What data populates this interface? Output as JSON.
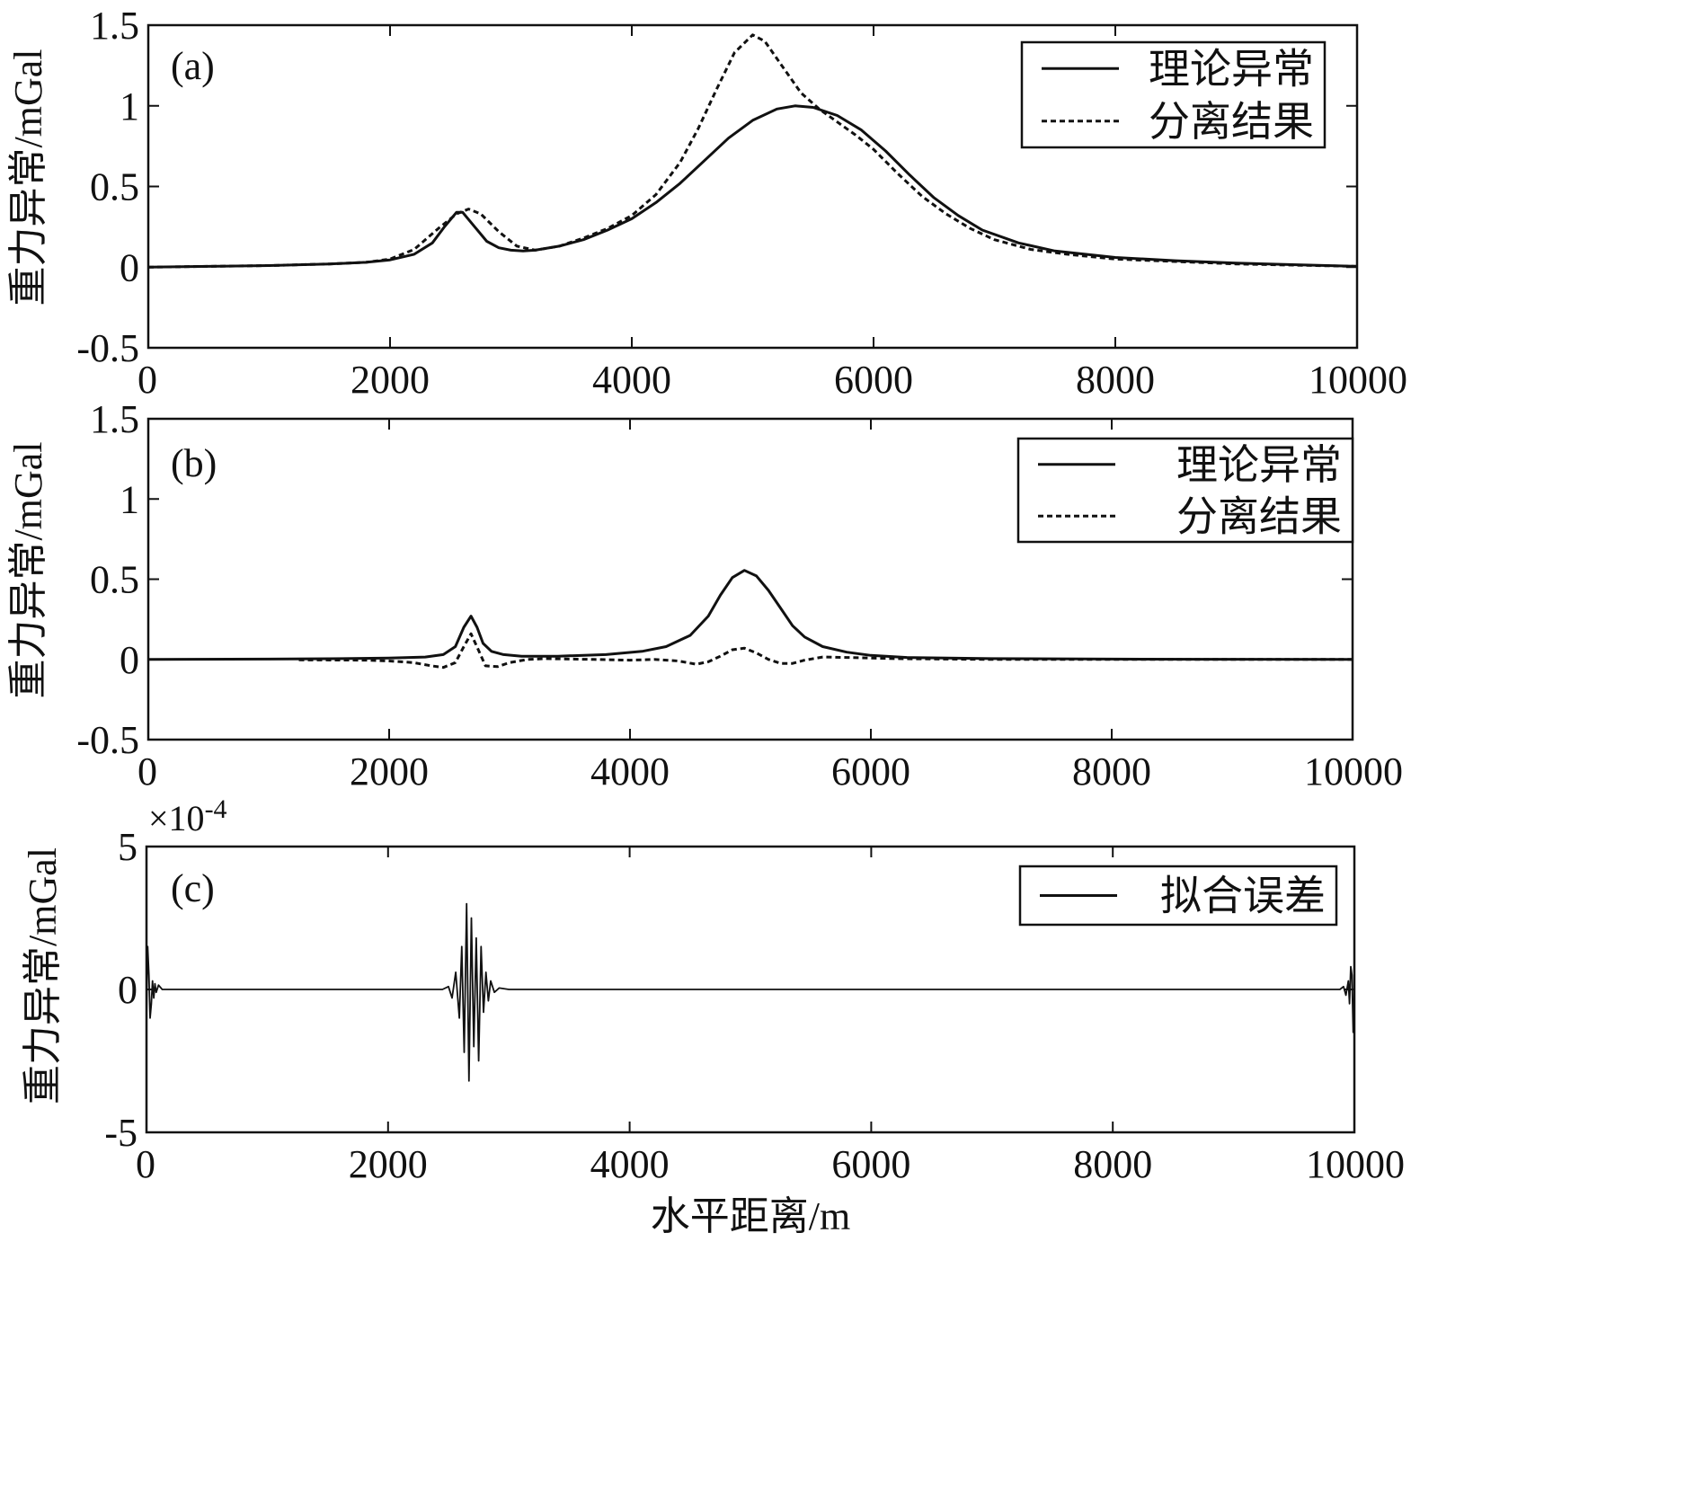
{
  "chart_data": [
    {
      "type": "line",
      "panel_label": "(a)",
      "ylabel": "重力异常/mGal",
      "xlabel": "",
      "xlim": [
        0,
        10000
      ],
      "ylim": [
        -0.5,
        1.5
      ],
      "x_ticks": [
        0,
        2000,
        4000,
        6000,
        8000,
        10000
      ],
      "y_ticks": [
        -0.5,
        0,
        0.5,
        1,
        1.5
      ],
      "x_tick_labels": [
        "0",
        "2000",
        "4000",
        "6000",
        "8000",
        "10000"
      ],
      "y_tick_labels": [
        "-0.5",
        "0",
        "0.5",
        "1",
        "1.5"
      ],
      "legend_position": "top-right",
      "series": [
        {
          "name": "理论异常",
          "style": "solid",
          "x": [
            0,
            500,
            1000,
            1500,
            1800,
            2000,
            2200,
            2350,
            2450,
            2550,
            2600,
            2700,
            2800,
            2900,
            3000,
            3100,
            3200,
            3400,
            3600,
            3800,
            4000,
            4200,
            4400,
            4600,
            4800,
            5000,
            5200,
            5350,
            5500,
            5700,
            5900,
            6100,
            6300,
            6500,
            6700,
            6900,
            7200,
            7500,
            8000,
            8500,
            9000,
            9500,
            10000
          ],
          "y": [
            0.0,
            0.005,
            0.01,
            0.02,
            0.03,
            0.045,
            0.08,
            0.15,
            0.25,
            0.34,
            0.34,
            0.25,
            0.16,
            0.12,
            0.105,
            0.1,
            0.105,
            0.13,
            0.17,
            0.23,
            0.3,
            0.4,
            0.52,
            0.66,
            0.8,
            0.91,
            0.98,
            1.0,
            0.99,
            0.94,
            0.85,
            0.72,
            0.57,
            0.43,
            0.32,
            0.23,
            0.15,
            0.1,
            0.06,
            0.04,
            0.025,
            0.015,
            0.005
          ]
        },
        {
          "name": "分离结果",
          "style": "dashed",
          "x": [
            0,
            500,
            1000,
            1500,
            1800,
            2000,
            2200,
            2400,
            2550,
            2650,
            2750,
            2900,
            3050,
            3200,
            3400,
            3600,
            3800,
            4000,
            4200,
            4400,
            4550,
            4700,
            4850,
            5000,
            5100,
            5250,
            5400,
            5550,
            5700,
            5850,
            6000,
            6200,
            6400,
            6600,
            6800,
            7000,
            7300,
            7600,
            8000,
            8500,
            9000,
            9500,
            10000
          ],
          "y": [
            0.0,
            0.005,
            0.01,
            0.02,
            0.03,
            0.05,
            0.11,
            0.24,
            0.33,
            0.36,
            0.33,
            0.22,
            0.13,
            0.105,
            0.13,
            0.18,
            0.24,
            0.32,
            0.45,
            0.65,
            0.86,
            1.1,
            1.33,
            1.44,
            1.4,
            1.24,
            1.08,
            0.98,
            0.9,
            0.82,
            0.73,
            0.58,
            0.44,
            0.33,
            0.24,
            0.17,
            0.11,
            0.08,
            0.05,
            0.035,
            0.02,
            0.012,
            0.005
          ]
        }
      ]
    },
    {
      "type": "line",
      "panel_label": "(b)",
      "ylabel": "重力异常/mGal",
      "xlabel": "",
      "xlim": [
        0,
        10000
      ],
      "ylim": [
        -0.5,
        1.5
      ],
      "x_ticks": [
        0,
        2000,
        4000,
        6000,
        8000,
        10000
      ],
      "y_ticks": [
        -0.5,
        0,
        0.5,
        1,
        1.5
      ],
      "x_tick_labels": [
        "0",
        "2000",
        "4000",
        "6000",
        "8000",
        "10000"
      ],
      "y_tick_labels": [
        "-0.5",
        "0",
        "0.5",
        "1",
        "1.5"
      ],
      "legend_position": "top-right",
      "series": [
        {
          "name": "理论异常",
          "style": "solid",
          "x": [
            0,
            1000,
            1500,
            2000,
            2300,
            2450,
            2550,
            2620,
            2680,
            2730,
            2780,
            2850,
            2950,
            3100,
            3400,
            3800,
            4100,
            4300,
            4500,
            4650,
            4750,
            4850,
            4950,
            5050,
            5150,
            5250,
            5350,
            5450,
            5600,
            5800,
            6000,
            6300,
            7000,
            8000,
            9000,
            10000
          ],
          "y": [
            0.0,
            0.002,
            0.004,
            0.008,
            0.015,
            0.03,
            0.08,
            0.2,
            0.27,
            0.2,
            0.1,
            0.05,
            0.03,
            0.02,
            0.02,
            0.03,
            0.05,
            0.08,
            0.15,
            0.27,
            0.4,
            0.51,
            0.555,
            0.52,
            0.43,
            0.32,
            0.21,
            0.14,
            0.08,
            0.045,
            0.025,
            0.012,
            0.005,
            0.002,
            0.001,
            0.0
          ]
        },
        {
          "name": "分离结果",
          "style": "dashed",
          "x": [
            1250,
            1800,
            2000,
            2200,
            2350,
            2450,
            2550,
            2620,
            2680,
            2740,
            2800,
            2900,
            3000,
            3150,
            3300,
            3700,
            4000,
            4200,
            4400,
            4550,
            4650,
            4750,
            4850,
            4950,
            5050,
            5150,
            5250,
            5350,
            5450,
            5600,
            5800,
            6200,
            7000,
            8000,
            9000,
            10000
          ],
          "y": [
            -0.003,
            -0.005,
            -0.01,
            -0.02,
            -0.04,
            -0.05,
            -0.02,
            0.08,
            0.16,
            0.06,
            -0.04,
            -0.045,
            -0.02,
            0.0,
            0.005,
            0.0,
            -0.005,
            0.0,
            -0.01,
            -0.03,
            -0.015,
            0.02,
            0.06,
            0.07,
            0.04,
            0.0,
            -0.025,
            -0.025,
            -0.005,
            0.015,
            0.012,
            0.005,
            0.0,
            0.0,
            0.0,
            0.0
          ]
        }
      ]
    },
    {
      "type": "line",
      "panel_label": "(c)",
      "ylabel": "重力异常/mGal",
      "xlabel": "水平距离/m",
      "exponent_label_base": "×10",
      "exponent_label_power": "-4",
      "xlim": [
        0,
        10000
      ],
      "ylim": [
        -5,
        5
      ],
      "x_ticks": [
        0,
        2000,
        4000,
        6000,
        8000,
        10000
      ],
      "y_ticks": [
        -5,
        0,
        5
      ],
      "x_tick_labels": [
        "0",
        "2000",
        "4000",
        "6000",
        "8000",
        "10000"
      ],
      "y_tick_labels": [
        "-5",
        "0",
        "5"
      ],
      "legend_position": "top-right",
      "series": [
        {
          "name": "拟合误差",
          "style": "solid",
          "x": [
            0,
            10,
            20,
            30,
            40,
            50,
            60,
            70,
            80,
            100,
            130,
            200,
            2450,
            2500,
            2530,
            2560,
            2590,
            2610,
            2630,
            2650,
            2670,
            2690,
            2710,
            2730,
            2750,
            2770,
            2790,
            2810,
            2830,
            2850,
            2880,
            2920,
            3000,
            9800,
            9880,
            9910,
            9930,
            9950,
            9960,
            9970,
            9980,
            9990,
            10000
          ],
          "y": [
            -1.0,
            1.5,
            0.5,
            -1.0,
            -0.5,
            0.3,
            -0.3,
            0.2,
            -0.1,
            0.15,
            0.0,
            0.0,
            0.0,
            0.1,
            -0.3,
            0.6,
            -1.0,
            1.5,
            -2.2,
            3.0,
            -3.2,
            2.5,
            -2.0,
            1.8,
            -2.5,
            1.5,
            -0.8,
            0.6,
            -0.4,
            0.3,
            -0.1,
            0.05,
            0.0,
            0.0,
            0.0,
            0.1,
            -0.2,
            0.3,
            -0.5,
            0.8,
            0.5,
            -1.5,
            0.0
          ]
        }
      ]
    }
  ]
}
